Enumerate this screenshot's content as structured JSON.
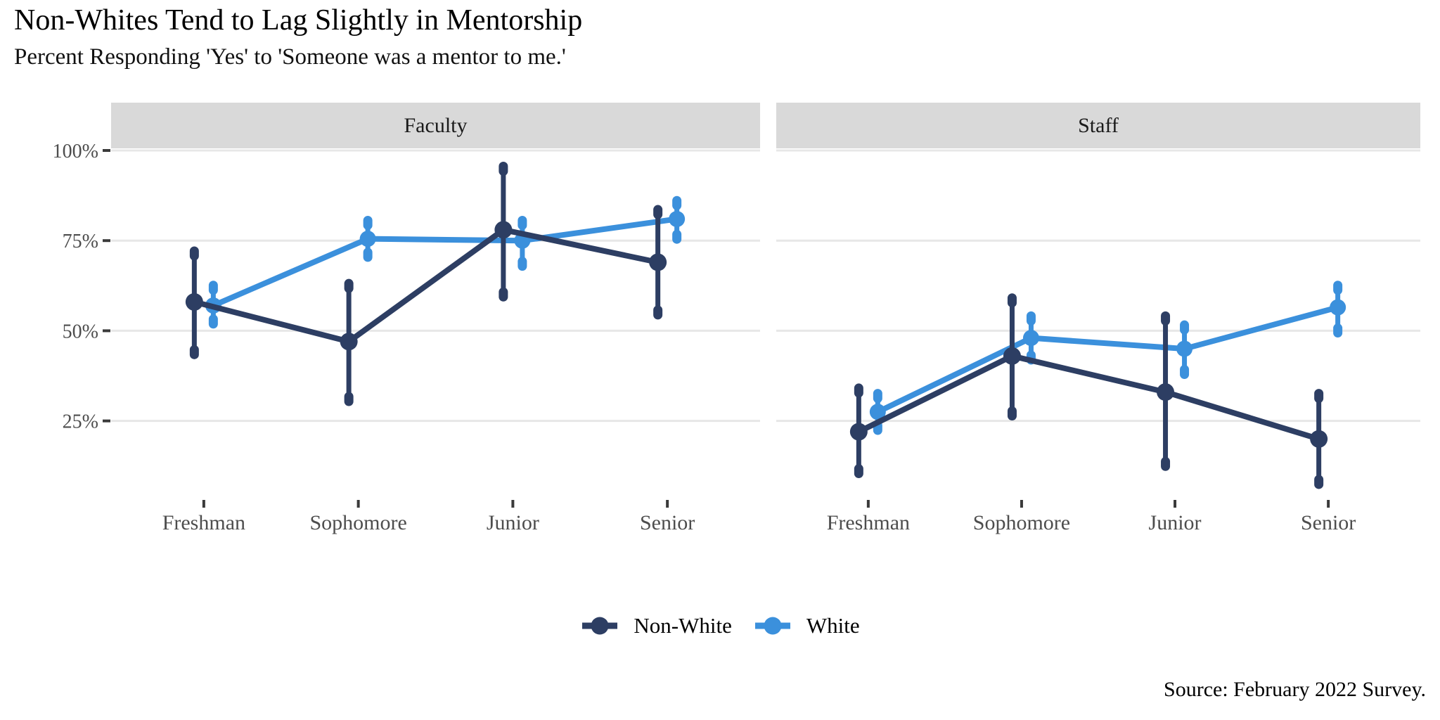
{
  "title": "Non-Whites Tend to Lag Slightly in Mentorship",
  "subtitle": "Percent Responding 'Yes' to 'Someone was a mentor to me.'",
  "caption": "Source: February 2022 Survey.",
  "colors": {
    "non_white": "#2d3e63",
    "white": "#3b90dc",
    "strip_bg": "#d9d9d9",
    "strip_text": "#1a1a1a",
    "gridline": "#e7e7e7",
    "axis_text": "#4d4d4d",
    "tick_mark": "#3a3a3a",
    "background": "#ffffff"
  },
  "legend": {
    "position": "bottom",
    "items": [
      {
        "label": "Non-White",
        "color": "#2d3e63"
      },
      {
        "label": "White",
        "color": "#3b90dc"
      }
    ]
  },
  "chart_data": {
    "type": "pointrange-line",
    "title": "Non-Whites Tend to Lag Slightly in Mentorship",
    "subtitle": "Percent Responding 'Yes' to 'Someone was a mentor to me.'",
    "caption": "Source: February 2022 Survey.",
    "categories": [
      "Freshman",
      "Sophomore",
      "Junior",
      "Senior"
    ],
    "y_axis": {
      "unit": "percent",
      "tick_labels": [
        "100%",
        "75%",
        "50%",
        "25%"
      ],
      "tick_values": [
        100,
        75,
        50,
        25
      ],
      "range_shown": [
        3,
        101
      ],
      "grid": "horizontal-only"
    },
    "facets": [
      {
        "label": "Faculty",
        "series": [
          {
            "name": "Non-White",
            "color": "#2d3e63",
            "values": [
              58,
              47,
              78,
              69
            ],
            "ci_low": [
              43,
              30,
              59,
              54
            ],
            "ci_high": [
              72.5,
              63.5,
              96,
              84
            ]
          },
          {
            "name": "White",
            "color": "#3b90dc",
            "values": [
              57,
              75.5,
              75,
              81
            ],
            "ci_low": [
              51.5,
              70,
              67.5,
              75
            ],
            "ci_high": [
              63,
              81,
              81,
              86.5
            ]
          }
        ]
      },
      {
        "label": "Staff",
        "series": [
          {
            "name": "Non-White",
            "color": "#2d3e63",
            "values": [
              22,
              43,
              33,
              20
            ],
            "ci_low": [
              10,
              26,
              12,
              7
            ],
            "ci_high": [
              34.5,
              59.5,
              54.5,
              33
            ]
          },
          {
            "name": "White",
            "color": "#3b90dc",
            "values": [
              27.5,
              48,
              45,
              56.5
            ],
            "ci_low": [
              22,
              41.5,
              37.5,
              49
            ],
            "ci_high": [
              33,
              54.5,
              52,
              63
            ]
          }
        ]
      }
    ]
  }
}
